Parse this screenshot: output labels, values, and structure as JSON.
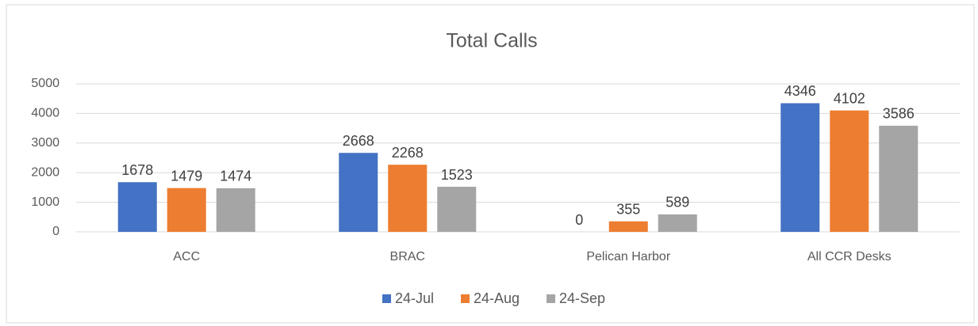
{
  "chart_data": {
    "type": "bar",
    "title": "Total Calls",
    "categories": [
      "ACC",
      "BRAC",
      "Pelican Harbor",
      "All CCR Desks"
    ],
    "series": [
      {
        "name": "24-Jul",
        "color": "#4472c4",
        "values": [
          1678,
          2668,
          0,
          4346
        ]
      },
      {
        "name": "24-Aug",
        "color": "#ed7d31",
        "values": [
          1479,
          2268,
          355,
          4102
        ]
      },
      {
        "name": "24-Sep",
        "color": "#a5a5a5",
        "values": [
          1474,
          1523,
          589,
          3586
        ]
      }
    ],
    "ylim": [
      0,
      5000
    ],
    "yticks": [
      0,
      1000,
      2000,
      3000,
      4000,
      5000
    ],
    "grid": true,
    "legend": "bottom"
  }
}
